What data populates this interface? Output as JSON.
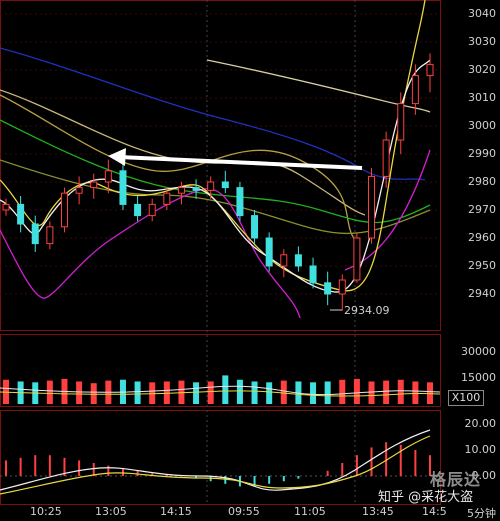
{
  "price_axis": [
    "3040",
    "3030",
    "3020",
    "3010",
    "3000",
    "2990",
    "2980",
    "2970",
    "2960",
    "2950",
    "2940"
  ],
  "volume_axis": [
    "30000",
    "15000"
  ],
  "volume_unit": "X100",
  "macd_axis": [
    "20.00",
    "10.00",
    "0.00"
  ],
  "time_axis": [
    "10:25",
    "13:05",
    "14:15",
    "09:55",
    "11:05",
    "13:45",
    "14:5"
  ],
  "period_label": "5分钟",
  "low_annotation": "2934.09",
  "watermark_text": "知乎 @采花大盗",
  "watermark_logo": "格辰达",
  "colors": {
    "background": "#000000",
    "up_candle": "#ff4040",
    "down_candle": "#40e0e0",
    "arrow": "#ffffff",
    "ma_white": "#f0f0f0",
    "ma_yellow": "#e8d840",
    "ma_magenta": "#d020d0",
    "ma_green": "#20b020",
    "ma_navy": "#2030c0",
    "ma_beige": "#d8d0a0"
  },
  "chart_data": [
    {
      "type": "candlestick",
      "title": "",
      "ylim": [
        2930,
        3045
      ],
      "x_ticks": [
        "10:25",
        "13:05",
        "14:15",
        "09:55",
        "11:05",
        "13:45",
        "14:5"
      ],
      "low_marker": 2934.09,
      "candles_approx": [
        [
          2970,
          2974,
          2968,
          2972
        ],
        [
          2972,
          2975,
          2962,
          2965
        ],
        [
          2965,
          2968,
          2955,
          2958
        ],
        [
          2958,
          2966,
          2956,
          2964
        ],
        [
          2964,
          2978,
          2962,
          2976
        ],
        [
          2976,
          2982,
          2972,
          2978
        ],
        [
          2978,
          2983,
          2974,
          2980
        ],
        [
          2980,
          2988,
          2976,
          2984
        ],
        [
          2984,
          2987,
          2970,
          2972
        ],
        [
          2972,
          2975,
          2966,
          2968
        ],
        [
          2968,
          2974,
          2966,
          2972
        ],
        [
          2972,
          2978,
          2970,
          2976
        ],
        [
          2976,
          2980,
          2972,
          2978
        ],
        [
          2978,
          2981,
          2974,
          2977
        ],
        [
          2977,
          2982,
          2974,
          2980
        ],
        [
          2980,
          2984,
          2976,
          2978
        ],
        [
          2978,
          2980,
          2966,
          2968
        ],
        [
          2968,
          2970,
          2958,
          2960
        ],
        [
          2960,
          2962,
          2948,
          2950
        ],
        [
          2950,
          2956,
          2946,
          2954
        ],
        [
          2954,
          2957,
          2948,
          2950
        ],
        [
          2950,
          2953,
          2942,
          2944
        ],
        [
          2944,
          2948,
          2936,
          2940
        ],
        [
          2940,
          2947,
          2934,
          2945
        ],
        [
          2945,
          2962,
          2944,
          2960
        ],
        [
          2960,
          2985,
          2958,
          2982
        ],
        [
          2982,
          2998,
          2978,
          2995
        ],
        [
          2995,
          3012,
          2990,
          3008
        ],
        [
          3008,
          3022,
          3004,
          3018
        ],
        [
          3018,
          3026,
          3012,
          3022
        ]
      ],
      "volume_approx": [
        14000,
        13000,
        12500,
        13500,
        14500,
        13000,
        12000,
        13500,
        14000,
        13000,
        12500,
        13000,
        13500,
        12500,
        13000,
        16500,
        14000,
        13000,
        12500,
        13500,
        13000,
        12500,
        13000,
        14000,
        14500,
        13000,
        13500,
        14000,
        13000,
        12500
      ],
      "macd_hist_approx": [
        6,
        7,
        8,
        8,
        7,
        6,
        5,
        4,
        3,
        2,
        1,
        0.5,
        0,
        -1,
        -2,
        -3,
        -4,
        -4,
        -3,
        -2,
        -1,
        0,
        2,
        5,
        8,
        11,
        13,
        12,
        10,
        8
      ]
    }
  ]
}
